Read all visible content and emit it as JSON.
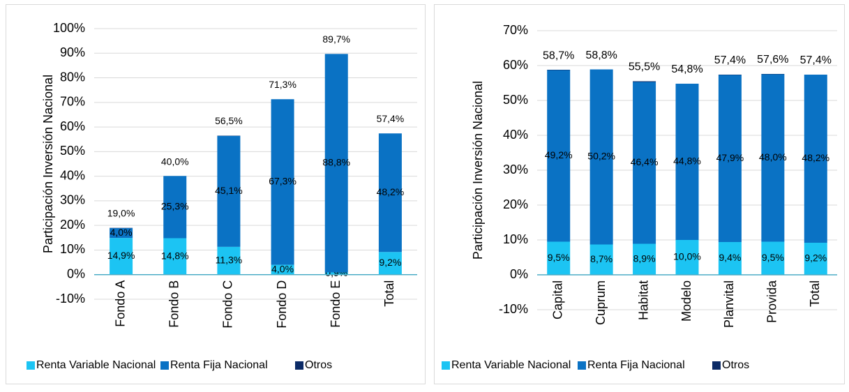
{
  "chart_data": [
    {
      "type": "bar",
      "stacked": true,
      "y_label": "Participación Inversión Nacional",
      "categories": [
        "Fondo A",
        "Fondo B",
        "Fondo C",
        "Fondo D",
        "Fondo E",
        "Total"
      ],
      "series": [
        {
          "name": "Renta Variable Nacional",
          "color": "#1cc4f3",
          "values": [
            14.9,
            14.8,
            11.3,
            4.0,
            0.9,
            9.2
          ],
          "value_labels": [
            "14,9%",
            "14,8%",
            "11,3%",
            "4,0%",
            "0,9%",
            "9,2%"
          ]
        },
        {
          "name": "Renta Fija Nacional",
          "color": "#0a72c4",
          "values": [
            4.0,
            25.3,
            45.1,
            67.3,
            88.8,
            48.2
          ],
          "value_labels": [
            "4,0%",
            "25,3%",
            "45,1%",
            "67,3%",
            "88,8%",
            "48,2%"
          ]
        },
        {
          "name": "Otros",
          "color": "#0b2a66",
          "values": [
            0.1,
            0,
            0.1,
            0,
            0,
            0
          ]
        }
      ],
      "totals": [
        19.0,
        40.0,
        56.5,
        71.3,
        89.7,
        57.4
      ],
      "total_labels": [
        "19,0%",
        "40,0%",
        "56,5%",
        "71,3%",
        "89,7%",
        "57,4%"
      ],
      "ylim": [
        -10,
        100
      ],
      "yticks": [
        {
          "value": -10,
          "label": "-10%"
        },
        {
          "value": 0,
          "label": "0%"
        },
        {
          "value": 10,
          "label": "10%"
        },
        {
          "value": 20,
          "label": "20%"
        },
        {
          "value": 30,
          "label": "30%"
        },
        {
          "value": 40,
          "label": "40%"
        },
        {
          "value": 50,
          "label": "50%"
        },
        {
          "value": 60,
          "label": "60%"
        },
        {
          "value": 70,
          "label": "70%"
        },
        {
          "value": 80,
          "label": "80%"
        },
        {
          "value": 90,
          "label": "90%"
        },
        {
          "value": 100,
          "label": "100%"
        }
      ],
      "grid": true,
      "legend": "bottom"
    },
    {
      "type": "bar",
      "stacked": true,
      "y_label": "Participación Inversión Nacional",
      "categories": [
        "Capital",
        "Cuprum",
        "Habitat",
        "Modelo",
        "Planvital",
        "Provida",
        "Total"
      ],
      "series": [
        {
          "name": "Renta Variable Nacional",
          "color": "#1cc4f3",
          "values": [
            9.5,
            8.7,
            8.9,
            10.0,
            9.4,
            9.5,
            9.2
          ],
          "value_labels": [
            "9,5%",
            "8,7%",
            "8,9%",
            "10,0%",
            "9,4%",
            "9,5%",
            "9,2%"
          ]
        },
        {
          "name": "Renta Fija Nacional",
          "color": "#0a72c4",
          "values": [
            49.2,
            50.2,
            46.4,
            44.8,
            47.9,
            48.0,
            48.2
          ],
          "value_labels": [
            "49,2%",
            "50,2%",
            "46,4%",
            "44,8%",
            "47,9%",
            "48,0%",
            "48,2%"
          ]
        },
        {
          "name": "Otros",
          "color": "#0b2a66",
          "values": [
            0.1,
            0,
            0.2,
            0,
            0.1,
            0.1,
            0
          ]
        }
      ],
      "totals": [
        58.7,
        58.8,
        55.5,
        54.8,
        57.4,
        57.6,
        57.4
      ],
      "total_labels": [
        "58,7%",
        "58,8%",
        "55,5%",
        "54,8%",
        "57,4%",
        "57,6%",
        "57,4%"
      ],
      "ylim": [
        -10,
        70
      ],
      "yticks": [
        {
          "value": -10,
          "label": "-10%"
        },
        {
          "value": 0,
          "label": "0%"
        },
        {
          "value": 10,
          "label": "10%"
        },
        {
          "value": 20,
          "label": "20%"
        },
        {
          "value": 30,
          "label": "30%"
        },
        {
          "value": 40,
          "label": "40%"
        },
        {
          "value": 50,
          "label": "50%"
        },
        {
          "value": 60,
          "label": "60%"
        },
        {
          "value": 70,
          "label": "70%"
        }
      ],
      "grid": true,
      "legend": "bottom"
    }
  ]
}
